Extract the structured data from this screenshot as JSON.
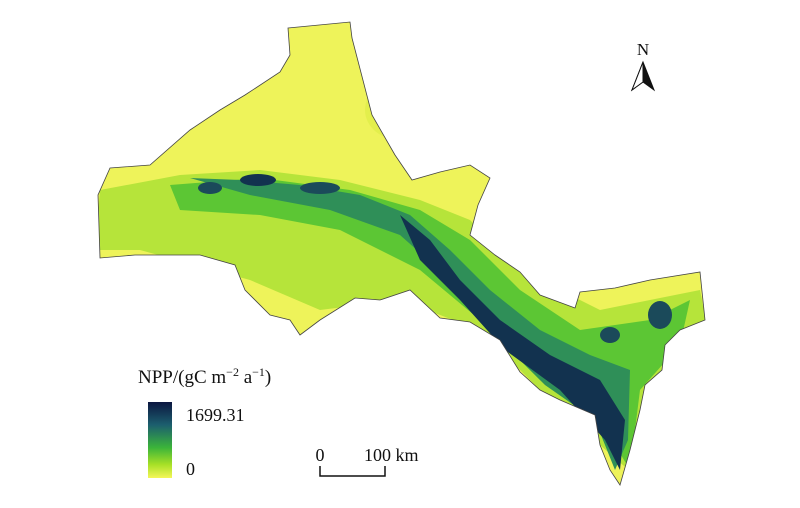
{
  "north_label": "N",
  "legend": {
    "title_parts": [
      "NPP/(gC m",
      "−2",
      " a",
      "−1",
      ")"
    ],
    "max": 1699.31,
    "min": 0
  },
  "scale_bar": {
    "start": "0",
    "end": "100 km"
  }
}
